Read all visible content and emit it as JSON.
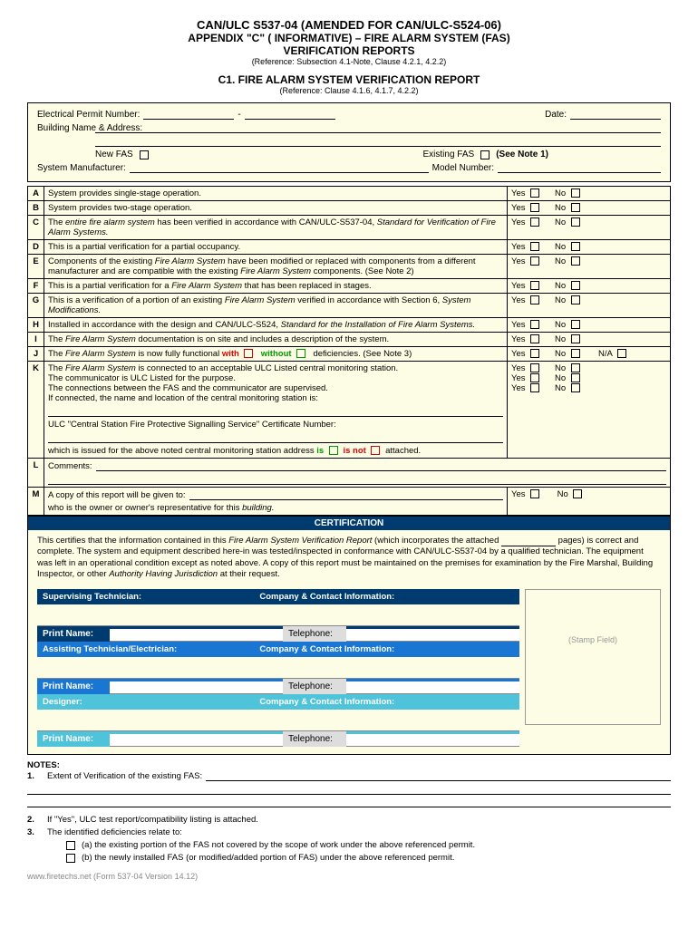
{
  "header": {
    "t1": "CAN/ULC S537-04 (AMENDED FOR CAN/ULC-S524-06)",
    "t2": "APPENDIX \"C\" ( INFORMATIVE) – FIRE ALARM SYSTEM (FAS)",
    "t3": "VERIFICATION REPORTS",
    "ref1": "(Reference: Subsection 4.1-Note, Clause 4.2.1, 4.2.2)",
    "t4": "C1.  FIRE ALARM SYSTEM VERIFICATION REPORT",
    "ref2": "(Reference:  Clause 4.1.6, 4.1.7, 4.2.2)"
  },
  "top": {
    "permit": "Electrical Permit Number:",
    "date": "Date:",
    "bldg": "Building Name & Address:",
    "newfas": "New FAS",
    "exfas": "Existing FAS",
    "seenote": "(See Note 1)",
    "mfr": "System Manufacturer:",
    "model": "Model Number:"
  },
  "rows": [
    {
      "l": "A",
      "t": "System provides single-stage operation.",
      "yn": "yn"
    },
    {
      "l": "B",
      "t": "System provides two-stage operation.",
      "yn": "yn"
    },
    {
      "l": "C",
      "t": "The <span class='it'>entire fire alarm system</span> has been verified in accordance with CAN/ULC-S537-04, <span class='it'>Standard for Verification of Fire Alarm Systems.</span>",
      "yn": "yn"
    },
    {
      "l": "D",
      "t": "This is a partial verification for a partial occupancy.",
      "yn": "yn"
    },
    {
      "l": "E",
      "t": "Components of the existing <span class='it'>Fire Alarm System</span> have been modified or replaced with components from a different manufacturer and are compatible with the existing <span class='it'>Fire Alarm System</span> components. (See Note 2)",
      "yn": "yn"
    },
    {
      "l": "F",
      "t": "This is a partial verification for a <span class='it'>Fire Alarm System</span> that has been replaced in stages.",
      "yn": "yn"
    },
    {
      "l": "G",
      "t": "This is a verification of a portion of an existing <span class='it'>Fire Alarm System</span> verified in accordance with Section 6, <span class='it'>System Modifications.</span>",
      "yn": "yn"
    },
    {
      "l": "H",
      "t": "Installed in accordance with the design and CAN/ULC-S524, <span class='it'>Standard for the Installation of Fire Alarm Systems.</span>",
      "yn": "yn"
    },
    {
      "l": "I",
      "t": "The <span class='it'>Fire Alarm System</span> documentation is on site and includes a description of the system.",
      "yn": "yn"
    },
    {
      "l": "J",
      "t": "The <span class='it'>Fire Alarm System</span> is now fully functional <span class='red'>with</span> <span class='cb cb-r'></span>&nbsp;&nbsp;<span class='grn'>without</span> <span class='cb cb-g'></span>&nbsp; deficiencies. (See Note 3)",
      "yn": "yna"
    }
  ],
  "k": {
    "l": "K",
    "l1": "The <span class='it'>Fire Alarm System</span> is connected to an acceptable ULC Listed central monitoring station.",
    "l2": "The communicator is ULC Listed for the purpose.",
    "l3": "The connections between the FAS and the communicator are supervised.",
    "l4": "If connected, the name and location of the central monitoring station is:",
    "l5": "ULC \"Central Station Fire Protective Signalling Service\" Certificate Number:",
    "l6a": "which is issued for the above noted central monitoring station address",
    "l6is": "is",
    "l6not": "is not",
    "l6b": "attached."
  },
  "lrow": {
    "l": "L",
    "t": "Comments:"
  },
  "mrow": {
    "l": "M",
    "t1": "A copy of this report will be given to:",
    "t2": "who is the owner or owner's representative for this <span class='it'>building.</span>"
  },
  "cert": {
    "bar": "CERTIFICATION",
    "txt": "This certifies that the information contained in this <span class='it'>Fire Alarm System Verification Report</span>  (which incorporates the attached <span class='ul'></span> pages) is correct and complete.   The system and equipment described here-in was tested/inspected in conformance with CAN/ULC-S537-04 by a qualified technician.  The equipment was left in an operational condition except as noted above.  A copy of this report must be maintained on the premises for examination by the Fire Marshal, Building Inspector, or other <span class='it'>Authority Having Jurisdiction</span> at their request.",
    "stamp": "(Stamp Field)",
    "roles": [
      {
        "r": "Supervising Technician:",
        "c": "Company & Contact Information:",
        "bg": "bg-dk"
      },
      {
        "r": "Assisting Technician/Electrician:",
        "c": "Company & Contact Information:",
        "bg": "bg-md"
      },
      {
        "r": "Designer:",
        "c": "Company & Contact Information:",
        "bg": "bg-lt"
      }
    ],
    "pn": "Print Name:",
    "tel": "Telephone:"
  },
  "notes": {
    "hd": "NOTES:",
    "n1": "Extent of Verification of the existing FAS:",
    "n2": "If \"Yes\", ULC test report/compatibility listing is attached.",
    "n3": "The identified deficiencies relate to:",
    "n3a": "(a) the existing portion of the FAS not covered by the scope of work under the above referenced permit.",
    "n3b": "(b) the newly installed FAS (or modified/added portion of FAS) under the above referenced permit."
  },
  "foot": "www.firetechs.net  (Form 537-04 Version 14.12)",
  "yn": {
    "yes": "Yes",
    "no": "No",
    "na": "N/A"
  }
}
